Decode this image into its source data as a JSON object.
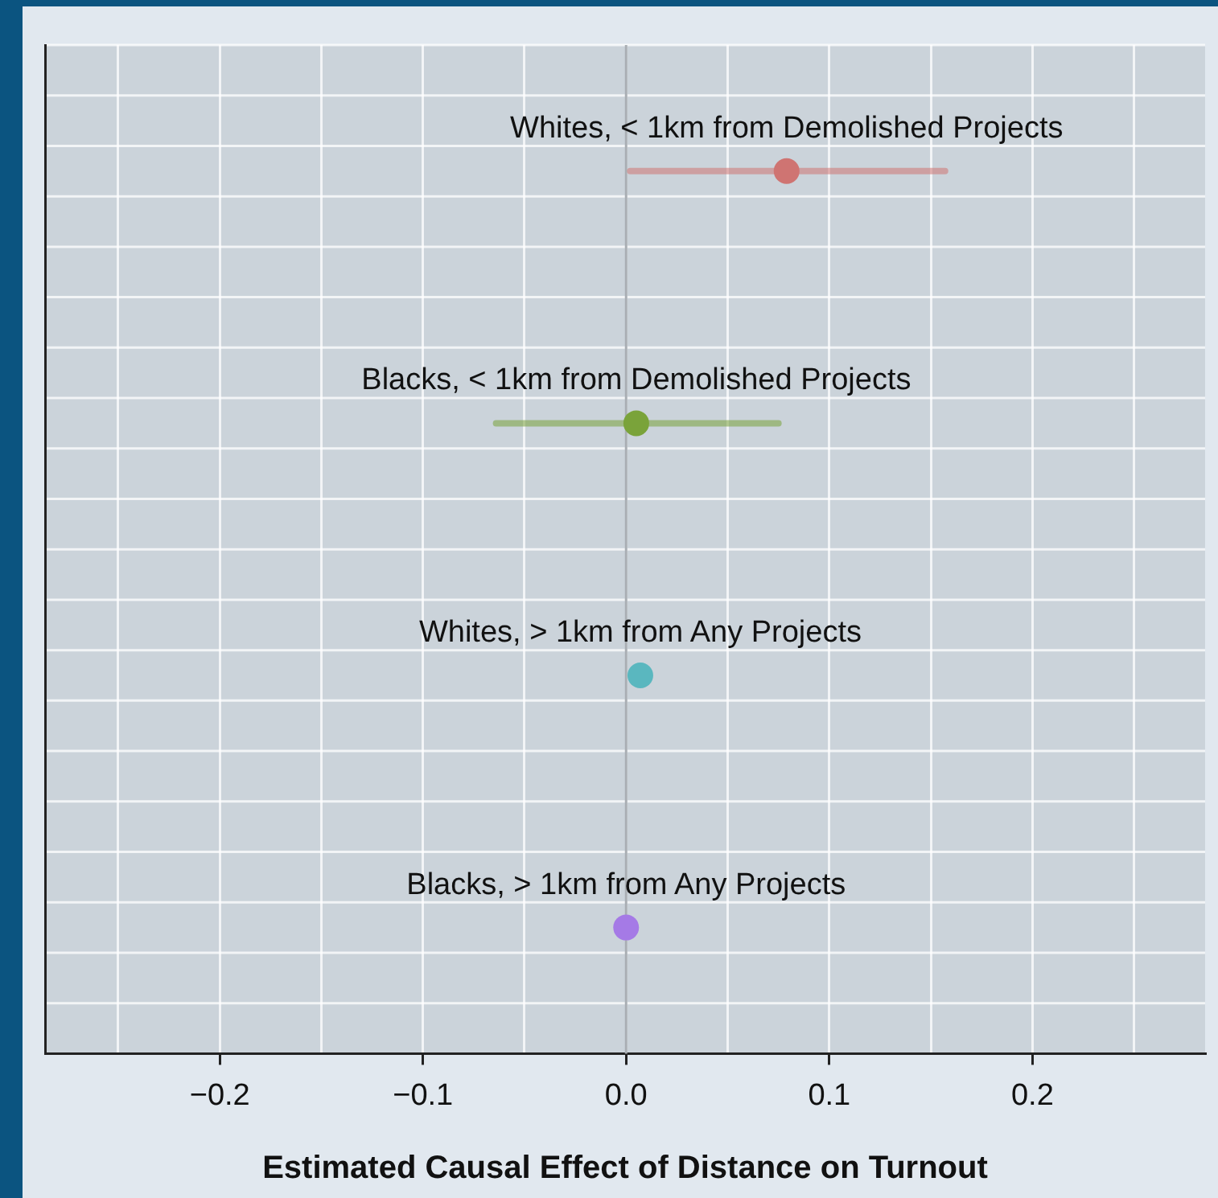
{
  "chart_data": {
    "type": "scatter",
    "orientation": "horizontal",
    "xlabel": "Estimated Causal Effect of Distance on Turnout",
    "categories": [
      null,
      null,
      null,
      null
    ],
    "series": [
      {
        "name": "Whites, < 1km from Demolished Projects",
        "color": "#cf7472",
        "values": [
          0.079,
          null,
          null,
          null
        ],
        "errors": [
          [
            0.002,
            0.157
          ],
          null,
          null,
          null
        ]
      },
      {
        "name": "Blacks, < 1km from Demolished Projects",
        "color": "#7aa33a",
        "values": [
          null,
          0.005,
          null,
          null
        ],
        "errors": [
          null,
          [
            -0.064,
            0.075
          ],
          null,
          null
        ]
      },
      {
        "name": "Whites, > 1km from Any Projects",
        "color": "#5ab7bf",
        "values": [
          null,
          null,
          0.007,
          null
        ]
      },
      {
        "name": "Blacks, > 1km from Any Projects",
        "color": "#a57ae6",
        "values": [
          null,
          null,
          null,
          0.0
        ]
      }
    ],
    "xlim": [
      -0.286,
      0.285
    ],
    "xticks": [
      {
        "value": -0.25,
        "label": null
      },
      {
        "value": -0.2,
        "label": "−0.2"
      },
      {
        "value": -0.15,
        "label": null
      },
      {
        "value": -0.1,
        "label": "−0.1"
      },
      {
        "value": -0.05,
        "label": null
      },
      {
        "value": 0,
        "label": "0.0"
      },
      {
        "value": 0.05,
        "label": null
      },
      {
        "value": 0.1,
        "label": "0.1"
      },
      {
        "value": 0.15,
        "label": null
      },
      {
        "value": 0.2,
        "label": "0.2"
      },
      {
        "value": 0.25,
        "label": null
      }
    ],
    "ref_lines": [
      {
        "axis": "x",
        "value": 0,
        "color": "#a9aeb3"
      }
    ],
    "grid": true,
    "marker": "circle",
    "tick_labels": "x",
    "legend": false
  }
}
